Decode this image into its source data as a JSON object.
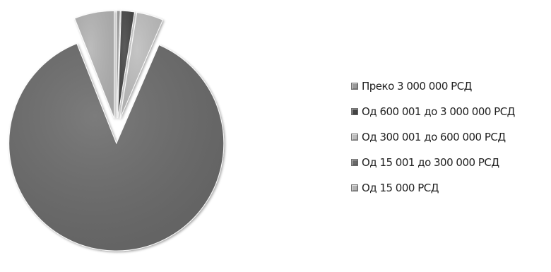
{
  "chart_data": {
    "type": "pie",
    "title": "",
    "exploded": true,
    "legend_position": "right",
    "categories": [
      "Преко 3 000 000 РСД",
      "Од 600 001 до 3 000 000 РСД",
      "Од 300 001 до 600 000 РСД",
      "Од 15 001 до 300 000 РСД",
      "Од 15 000 РСД"
    ],
    "values": [
      0.5,
      2,
      4,
      87.5,
      6
    ],
    "colors": [
      "#9a9a9a",
      "#454545",
      "#bdbdbd",
      "#6a6a6a",
      "#b3b3b3"
    ]
  }
}
